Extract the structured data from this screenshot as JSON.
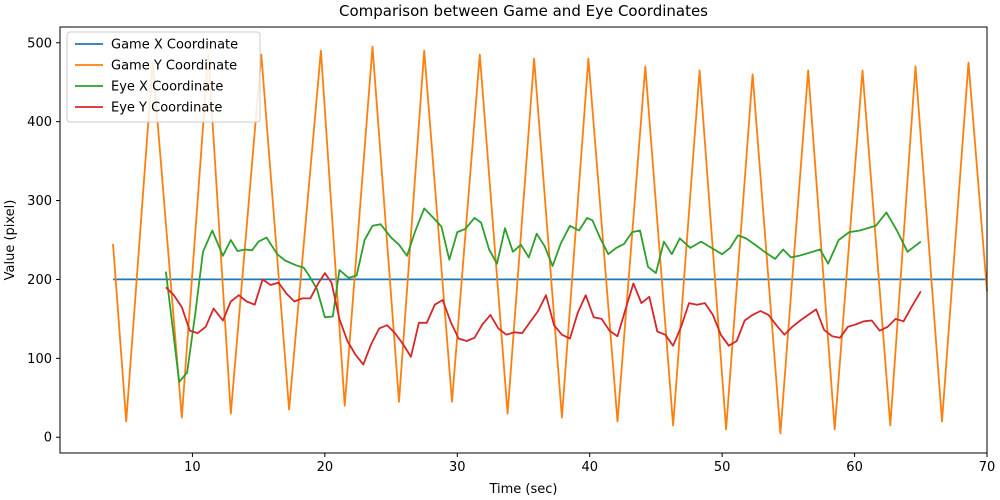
{
  "chart_data": {
    "type": "line",
    "title": "Comparison between Game and Eye Coordinates",
    "xlabel": "Time (sec)",
    "ylabel": "Value (pixel)",
    "xlim": [
      0,
      70
    ],
    "ylim": [
      -20,
      520
    ],
    "x_ticks": [
      10,
      20,
      30,
      40,
      50,
      60,
      70
    ],
    "y_ticks": [
      0,
      100,
      200,
      300,
      400,
      500
    ],
    "grid": false,
    "legend_position": "top-left",
    "series": [
      {
        "name": "Game X Coordinate",
        "color": "#1f77b4",
        "x": [
          4,
          70
        ],
        "y": [
          200,
          200
        ]
      },
      {
        "name": "Game Y Coordinate",
        "color": "#ff7f0e",
        "x": [
          4.0,
          5.0,
          7.0,
          9.2,
          11.2,
          12.9,
          15.2,
          17.3,
          19.7,
          21.5,
          23.6,
          25.6,
          27.5,
          29.6,
          31.7,
          33.8,
          35.8,
          37.9,
          39.9,
          42.1,
          44.2,
          46.3,
          48.3,
          50.3,
          52.3,
          54.4,
          56.5,
          58.5,
          60.6,
          62.7,
          64.6,
          66.6,
          68.6,
          70.0
        ],
        "y": [
          245,
          20,
          475,
          25,
          485,
          30,
          485,
          35,
          490,
          40,
          495,
          45,
          490,
          45,
          485,
          30,
          480,
          25,
          480,
          20,
          470,
          15,
          465,
          10,
          460,
          5,
          465,
          10,
          465,
          15,
          470,
          20,
          475,
          185
        ]
      },
      {
        "name": "Eye X Coordinate",
        "color": "#2ca02c",
        "x": [
          8.0,
          9.0,
          9.6,
          10.2,
          10.8,
          11.5,
          12.3,
          12.9,
          13.4,
          14.0,
          14.5,
          15.0,
          15.6,
          16.4,
          17.0,
          17.8,
          18.4,
          18.8,
          19.4,
          20.0,
          20.6,
          21.1,
          21.8,
          22.4,
          23.0,
          23.6,
          24.2,
          25.0,
          25.6,
          26.2,
          26.8,
          27.5,
          28.2,
          28.8,
          29.4,
          30.0,
          30.6,
          31.3,
          31.8,
          32.4,
          33.0,
          33.6,
          34.2,
          34.8,
          35.4,
          36.0,
          36.6,
          37.2,
          37.8,
          38.5,
          39.2,
          39.8,
          40.2,
          40.8,
          41.4,
          42.0,
          42.6,
          43.2,
          43.8,
          44.4,
          45.0,
          45.6,
          46.2,
          46.8,
          47.6,
          48.4,
          49.2,
          50.0,
          50.6,
          51.2,
          51.8,
          52.4,
          53.2,
          54.0,
          54.6,
          55.2,
          55.8,
          57.4,
          58.0,
          58.8,
          59.6,
          60.4,
          61.6,
          62.4,
          63.2,
          64.0,
          65.0
        ],
        "y": [
          210,
          70,
          82,
          155,
          235,
          262,
          230,
          250,
          236,
          238,
          237,
          248,
          253,
          232,
          224,
          218,
          215,
          205,
          188,
          152,
          153,
          212,
          202,
          205,
          250,
          268,
          270,
          253,
          244,
          230,
          260,
          290,
          278,
          267,
          225,
          260,
          264,
          278,
          272,
          238,
          220,
          265,
          235,
          244,
          228,
          258,
          242,
          217,
          245,
          268,
          262,
          278,
          275,
          252,
          232,
          240,
          245,
          260,
          262,
          216,
          208,
          248,
          232,
          252,
          240,
          248,
          240,
          232,
          240,
          256,
          252,
          245,
          235,
          226,
          238,
          228,
          230,
          238,
          220,
          250,
          260,
          262,
          268,
          285,
          262,
          235,
          248
        ]
      },
      {
        "name": "Eye Y Coordinate",
        "color": "#d62728",
        "x": [
          8.0,
          8.6,
          9.2,
          9.8,
          10.4,
          11.0,
          11.6,
          12.3,
          12.9,
          13.5,
          14.1,
          14.7,
          15.3,
          15.9,
          16.5,
          17.1,
          17.7,
          18.3,
          18.9,
          19.5,
          20.0,
          20.5,
          21.1,
          21.7,
          22.3,
          22.9,
          23.5,
          24.1,
          24.7,
          25.3,
          25.9,
          26.5,
          27.1,
          27.7,
          28.3,
          28.9,
          29.5,
          30.1,
          30.7,
          31.3,
          31.9,
          32.5,
          33.1,
          33.7,
          34.3,
          34.9,
          35.5,
          36.1,
          36.7,
          37.3,
          37.9,
          38.5,
          39.1,
          39.7,
          40.3,
          40.9,
          41.5,
          42.1,
          42.7,
          43.3,
          43.9,
          44.5,
          45.1,
          45.7,
          46.3,
          46.9,
          47.5,
          48.1,
          48.7,
          49.3,
          49.9,
          50.5,
          51.1,
          51.7,
          52.3,
          52.9,
          53.5,
          54.1,
          54.7,
          55.3,
          55.9,
          56.5,
          57.1,
          57.7,
          58.3,
          58.9,
          59.5,
          60.1,
          60.7,
          61.3,
          61.9,
          62.5,
          63.1,
          63.7,
          64.3,
          65.0
        ],
        "y": [
          190,
          180,
          165,
          135,
          132,
          140,
          163,
          148,
          172,
          180,
          172,
          168,
          200,
          193,
          196,
          182,
          172,
          176,
          176,
          195,
          208,
          196,
          150,
          122,
          105,
          92,
          118,
          138,
          142,
          132,
          118,
          102,
          145,
          145,
          168,
          174,
          146,
          125,
          122,
          126,
          143,
          155,
          138,
          130,
          133,
          132,
          146,
          160,
          180,
          142,
          130,
          125,
          158,
          180,
          152,
          150,
          135,
          128,
          162,
          195,
          170,
          178,
          134,
          130,
          116,
          140,
          170,
          168,
          170,
          155,
          130,
          116,
          122,
          148,
          155,
          160,
          155,
          142,
          130,
          140,
          148,
          155,
          162,
          136,
          128,
          126,
          140,
          143,
          147,
          148,
          135,
          140,
          150,
          147,
          165,
          185
        ]
      }
    ]
  }
}
